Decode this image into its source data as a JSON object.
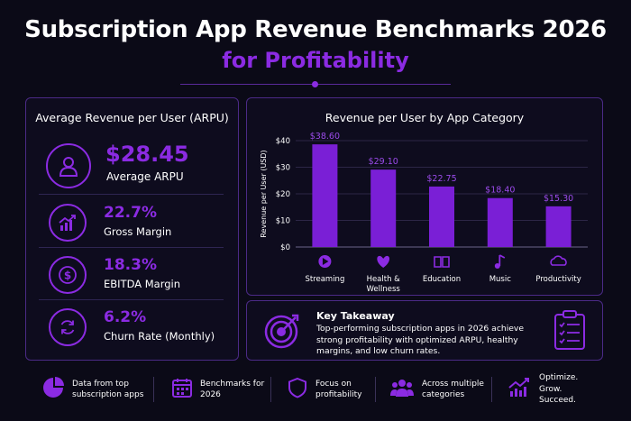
{
  "header": {
    "title_line1": "Subscription App Revenue Benchmarks 2026",
    "title_line2": "for Profitability"
  },
  "arpu_panel": {
    "title": "Average Revenue per User (ARPU)",
    "metrics": [
      {
        "value": "$28.45",
        "label": "Average ARPU",
        "icon": "user-icon"
      },
      {
        "value": "22.7%",
        "label": "Gross Margin",
        "icon": "growth-chart-icon"
      },
      {
        "value": "18.3%",
        "label": "EBITDA Margin",
        "icon": "dollar-icon"
      },
      {
        "value": "6.2%",
        "label": "Churn Rate (Monthly)",
        "icon": "refresh-icon"
      }
    ]
  },
  "chart_data": {
    "type": "bar",
    "title": "Revenue per User by App Category",
    "ylabel": "Revenue per User (USD)",
    "xlabel": "",
    "categories": [
      "Streaming",
      "Health & Wellness",
      "Education",
      "Music",
      "Productivity"
    ],
    "category_lines": [
      [
        "Streaming"
      ],
      [
        "Health &",
        "Wellness"
      ],
      [
        "Education"
      ],
      [
        "Music"
      ],
      [
        "Productivity"
      ]
    ],
    "category_icons": [
      "play-icon",
      "heart-icon",
      "book-icon",
      "music-note-icon",
      "cloud-icon"
    ],
    "values": [
      38.6,
      29.1,
      22.75,
      18.4,
      15.3
    ],
    "value_labels": [
      "$38.60",
      "$29.10",
      "$22.75",
      "$18.40",
      "$15.30"
    ],
    "yticks": [
      0,
      10,
      20,
      30,
      40
    ],
    "ytick_labels": [
      "$0",
      "$10",
      "$20",
      "$30",
      "$40"
    ],
    "ylim": [
      0,
      40
    ],
    "grid": true,
    "bar_color": "#7a1fd6"
  },
  "takeaway": {
    "title": "Key Takeaway",
    "text": "Top-performing subscription apps in 2026 achieve strong profitability with optimized ARPU, healthy margins, and low churn rates."
  },
  "footer": {
    "items": [
      {
        "text": "Data from top subscription apps",
        "icon": "pie-chart-icon"
      },
      {
        "text": "Benchmarks for 2026",
        "icon": "calendar-icon"
      },
      {
        "text": "Focus on profitability",
        "icon": "shield-icon"
      },
      {
        "text": "Across multiple categories",
        "icon": "people-icon"
      },
      {
        "text": "Optimize. Grow. Succeed.",
        "icon": "trend-up-icon"
      }
    ]
  },
  "colors": {
    "accent": "#8b2be2",
    "background": "#0b0a17",
    "panel_border": "#4b2a86"
  }
}
